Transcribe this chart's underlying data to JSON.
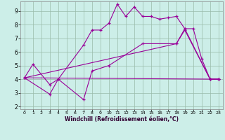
{
  "xlabel": "Windchill (Refroidissement éolien,°C)",
  "background_color": "#cceee8",
  "line_color": "#990099",
  "xlim": [
    -0.5,
    23.5
  ],
  "ylim": [
    1.8,
    9.7
  ],
  "yticks": [
    2,
    3,
    4,
    5,
    6,
    7,
    8,
    9
  ],
  "xticks": [
    0,
    1,
    2,
    3,
    4,
    5,
    6,
    7,
    8,
    9,
    10,
    11,
    12,
    13,
    14,
    15,
    16,
    17,
    18,
    19,
    20,
    21,
    22,
    23
  ],
  "line1_x": [
    0,
    1,
    3,
    4,
    7,
    8,
    9,
    10,
    11,
    12,
    13,
    14,
    15,
    16,
    17,
    18,
    19,
    20,
    21,
    22,
    23
  ],
  "line1_y": [
    4.1,
    5.1,
    3.6,
    4.0,
    6.5,
    7.6,
    7.6,
    8.1,
    9.5,
    8.6,
    9.3,
    8.6,
    8.6,
    8.4,
    8.5,
    8.6,
    7.7,
    7.7,
    5.5,
    4.0,
    4.0
  ],
  "line2_x": [
    0,
    3,
    4,
    7,
    8,
    10,
    14,
    18,
    19,
    22,
    23
  ],
  "line2_y": [
    4.1,
    2.9,
    4.0,
    2.5,
    4.6,
    5.0,
    6.6,
    6.6,
    7.6,
    4.0,
    4.0
  ],
  "line3_x": [
    0,
    18,
    19,
    22,
    23
  ],
  "line3_y": [
    4.1,
    6.6,
    7.7,
    4.0,
    4.0
  ],
  "line4_x": [
    0,
    23
  ],
  "line4_y": [
    4.1,
    4.0
  ],
  "grid_color": "#aabbaa"
}
